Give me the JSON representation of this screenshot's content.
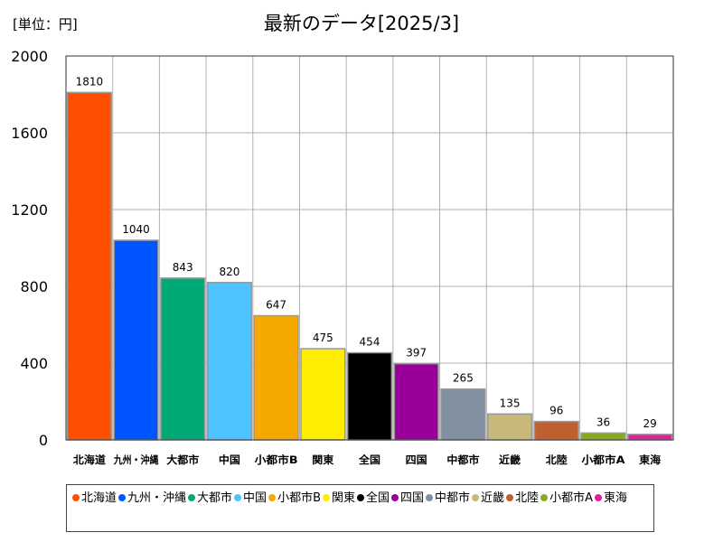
{
  "unit_label": "[単位：円]",
  "chart_data": {
    "type": "bar",
    "title": "最新のデータ[2025/3]",
    "xlabel": "",
    "ylabel": "",
    "ylim": [
      0,
      2000
    ],
    "yticks": [
      0,
      400,
      800,
      1200,
      1600,
      2000
    ],
    "grid": true,
    "legend_position": "bottom",
    "categories": [
      "北海道",
      "九州・沖縄",
      "大都市",
      "中国",
      "小都市B",
      "関東",
      "全国",
      "四国",
      "中都市",
      "近畿",
      "北陸",
      "小都市A",
      "東海"
    ],
    "values": [
      1810,
      1040,
      843,
      820,
      647,
      475,
      454,
      397,
      265,
      135,
      96,
      36,
      29
    ],
    "colors": [
      "#ff4f00",
      "#0055ff",
      "#00aa77",
      "#4dc3ff",
      "#f5a800",
      "#ffee00",
      "#000000",
      "#990099",
      "#8090a0",
      "#c8b87a",
      "#c06030",
      "#88aa22",
      "#dd2299"
    ]
  }
}
